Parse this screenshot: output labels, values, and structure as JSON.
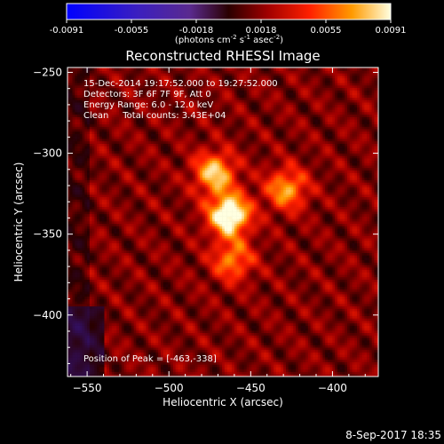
{
  "chart_data": {
    "type": "heatmap",
    "title": "Reconstructed RHESSI Image",
    "xlabel": "Heliocentric X (arcsec)",
    "ylabel": "Heliocentric Y (arcsec)",
    "xlim": [
      -562,
      -372
    ],
    "ylim": [
      -438,
      -247
    ],
    "x_ticks": [
      -550,
      -500,
      -450,
      -400
    ],
    "y_ticks": [
      -250,
      -300,
      -350,
      -400
    ],
    "colorbar": {
      "range": [
        -0.0091,
        0.0091
      ],
      "ticks": [
        "-0.0091",
        "-0.0055",
        "-0.0018",
        "0.0018",
        "0.0055",
        "0.0091"
      ],
      "unit_text": "(photons cm",
      "unit_sup1": "-2",
      "unit_mid1": " s",
      "unit_sup2": "-1",
      "unit_mid2": " asec",
      "unit_sup3": "-2",
      "unit_end": ")"
    },
    "info_lines": [
      "15-Dec-2014 19:17:52.000 to 19:27:52.000",
      "Detectors: 3F 6F 7F 9F, Att 0",
      "Energy Range: 6.0 - 12.0 keV",
      "Clean     Total counts: 3.43E+04"
    ],
    "peak_label": "Position of Peak = [-463,-338]",
    "peak": [
      -463,
      -338
    ],
    "sources": [
      {
        "x": -463,
        "y": -338,
        "peak": 0.0091
      },
      {
        "x": -472,
        "y": -312,
        "peak": 0.0065
      },
      {
        "x": -428,
        "y": -322,
        "peak": 0.0055
      },
      {
        "x": -461,
        "y": -366,
        "peak": 0.0048
      }
    ],
    "colormap": "red-temperature with negative blue-purple",
    "footer": "8-Sep-2017 18:35"
  }
}
